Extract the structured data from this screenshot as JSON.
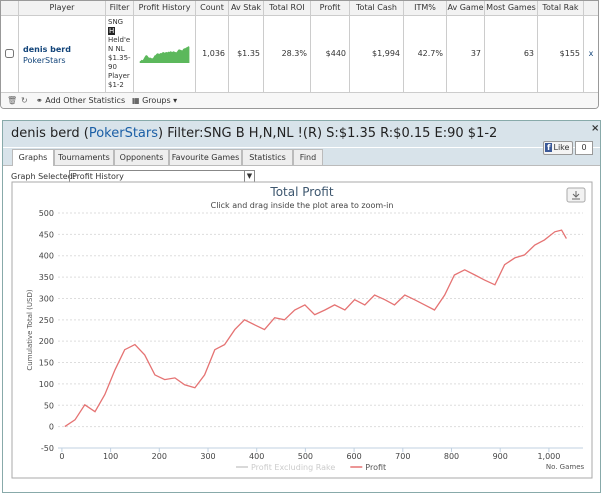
{
  "stats_table": {
    "headers": [
      "Player",
      "Filter",
      "Profit History",
      "Count",
      "Av Stak",
      "Total ROI",
      "Profit",
      "Total Cash",
      "ITM%",
      "Av Game",
      "Most Games",
      "Total Rak"
    ],
    "row": {
      "player": "denis berd",
      "site": "PokerStars",
      "filter": [
        "SNG",
        "H",
        "Held'e",
        "N NL",
        "$1.35-",
        "90",
        "Player",
        "$1-2"
      ],
      "cells": [
        "1,036",
        "$1.35",
        "28.3%",
        "$440",
        "$1,994",
        "42.7%",
        "37",
        "63",
        "$155"
      ],
      "remove": "x"
    },
    "footer": {
      "add_stats": "Add Other Statistics",
      "groups": "Groups"
    }
  },
  "panel": {
    "title_prefix": "denis berd (",
    "title_site": "PokerStars",
    "title_suffix": ") Filter:SNG B H,N,NL !(R) S:$1.35 R:$0.15 E:90 $1-2",
    "tabs": [
      "Graphs",
      "Tournaments",
      "Opponents",
      "Favourite Games",
      "Statistics",
      "Find"
    ],
    "like": "Like",
    "like_count": "0",
    "graph_selected_label": "Graph Selected:",
    "graph_selected": "Profit History"
  },
  "chart_data": {
    "type": "line",
    "title": "Total Profit",
    "subtitle": "Click and drag inside the plot area to zoom-in",
    "y_label": "Cumulative Total (USD)",
    "x_label": "No. Games",
    "x": [
      6,
      27,
      47,
      68,
      88,
      109,
      129,
      150,
      170,
      191,
      211,
      232,
      252,
      273,
      293,
      314,
      334,
      355,
      375,
      396,
      416,
      437,
      457,
      478,
      499,
      519,
      540,
      560,
      581,
      601,
      622,
      642,
      663,
      683,
      704,
      724,
      745,
      765,
      786,
      806,
      827,
      848,
      868,
      889,
      909,
      930,
      950,
      971,
      991,
      1012,
      1026,
      1036
    ],
    "series": [
      {
        "name": "Profit Excluding Rake",
        "color": "#cccccc",
        "visible": false
      },
      {
        "name": "Profit",
        "color": "#e57373",
        "visible": true,
        "values": [
          0,
          16,
          51,
          35,
          75,
          133,
          180,
          192,
          168,
          121,
          110,
          114,
          98,
          91,
          121,
          180,
          192,
          227,
          250,
          238,
          227,
          255,
          250,
          273,
          285,
          262,
          273,
          285,
          273,
          297,
          285,
          308,
          297,
          285,
          308,
          297,
          285,
          273,
          308,
          355,
          367,
          355,
          343,
          332,
          379,
          395,
          402,
          425,
          437,
          456,
          460,
          440
        ]
      }
    ],
    "xlim": [
      -8,
      1070
    ],
    "ylim": [
      -50,
      500
    ],
    "xticks": [
      0,
      100,
      200,
      300,
      400,
      500,
      600,
      700,
      800,
      900,
      {
        "value": 1000,
        "label": "1,000"
      }
    ],
    "yticks": [
      -50,
      0,
      50,
      100,
      150,
      200,
      250,
      300,
      350,
      400,
      450,
      500
    ],
    "grid": true,
    "sparkline_color": "#5cb85c"
  }
}
